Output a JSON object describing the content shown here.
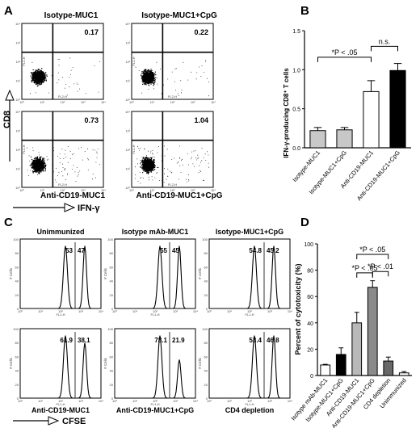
{
  "figure": {
    "panel_letters": [
      "A",
      "B",
      "C",
      "D"
    ]
  },
  "chart_data": [
    {
      "panel": "A",
      "type": "scatter",
      "column_titles": [
        "Isotype-MUC1",
        "Isotype-MUC1+CpG"
      ],
      "row_labels": [
        "Anti-CD19-MUC1",
        "Anti-CD19-MUC1+CpG"
      ],
      "quadrant_percentages": [
        0.17,
        0.22,
        0.73,
        1.04
      ],
      "quadrant_percentage_labels": [
        "0.17",
        "0.22",
        "0.73",
        "1.04"
      ],
      "axis_tick_labels_x": [
        "10⁰",
        "10¹",
        "10²",
        "10³",
        "10⁴"
      ],
      "axis_tick_labels_y": [
        "10⁰",
        "10¹",
        "10²",
        "10³",
        "10⁴"
      ],
      "small_axis_x": "FL2-H",
      "small_axis_y": "FL1-H",
      "xlabel": "IFN-γ",
      "ylabel": "CD8"
    },
    {
      "panel": "B",
      "type": "bar",
      "categories": [
        "Isotype-MUC1",
        "Isotype-MUC1+CpG",
        "Anti-CD19-MUC1",
        "Anti-CD19-MUC1+CpG"
      ],
      "values": [
        0.22,
        0.23,
        0.72,
        0.99
      ],
      "errors": [
        0.04,
        0.03,
        0.14,
        0.09
      ],
      "bar_colors": [
        "#c8c8c8",
        "#c8c8c8",
        "#ffffff",
        "#000000"
      ],
      "ylabel": "IFN-γ-producing CD8⁺ T cells",
      "ylim": [
        0,
        1.5
      ],
      "yticks": [
        0,
        0.5,
        1,
        1.5
      ],
      "ytick_labels": [
        "0.0",
        "0.5",
        "1.0",
        "1.5"
      ],
      "annotations": [
        "*P < .05",
        "n.s."
      ]
    },
    {
      "panel": "C",
      "type": "line",
      "histograms": [
        {
          "title": "Unimmunized",
          "left": "53",
          "right": "47"
        },
        {
          "title": "Isotype mAb-MUC1",
          "left": "55",
          "right": "45"
        },
        {
          "title": "Isotype-MUC1+CpG",
          "left": "54.8",
          "right": "45.2"
        },
        {
          "title": "Anti-CD19-MUC1",
          "left": "61.9",
          "right": "38.1"
        },
        {
          "title": "Anti-CD19-MUC1+CpG",
          "left": "78.1",
          "right": "21.9"
        },
        {
          "title": "CD4 depletion",
          "left": "53.4",
          "right": "46.8"
        }
      ],
      "left_peak_fraction": [
        0.53,
        0.55,
        0.548,
        0.619,
        0.781,
        0.534
      ],
      "right_peak_fraction": [
        0.47,
        0.45,
        0.452,
        0.381,
        0.219,
        0.468
      ],
      "xtick_labels": [
        "10⁰",
        "10¹",
        "10²",
        "10³",
        "10⁴"
      ],
      "ytick_labels": [
        "0",
        "20",
        "40",
        "60",
        "80",
        "100"
      ],
      "small_axis_y": "# Cells",
      "small_axis_x": "FL1-H",
      "xlabel": "CFSE"
    },
    {
      "panel": "D",
      "type": "bar",
      "categories": [
        "Isotype mAb-MUC1",
        "Isotype-MUC1+CpG",
        "Anti-CD19-MUC1",
        "Anti-CD19-MUC1+CpG",
        "CD4 depletion",
        "Unimmunized"
      ],
      "values": [
        8,
        16,
        40,
        67,
        11,
        2
      ],
      "errors": [
        0.5,
        5,
        8,
        5,
        3,
        1
      ],
      "bar_colors": [
        "#ffffff",
        "#000000",
        "#b8b8b8",
        "#8a8a8a",
        "#686868",
        "#ffffff"
      ],
      "ylabel": "Percent of cytotoxicity (%)",
      "ylim": [
        0,
        100
      ],
      "yticks": [
        0,
        20,
        40,
        60,
        80,
        100
      ],
      "ytick_labels": [
        "0",
        "20",
        "40",
        "60",
        "80",
        "100"
      ],
      "annotations": [
        "*P < .05",
        "*P < .05",
        "*P < .01"
      ]
    }
  ]
}
